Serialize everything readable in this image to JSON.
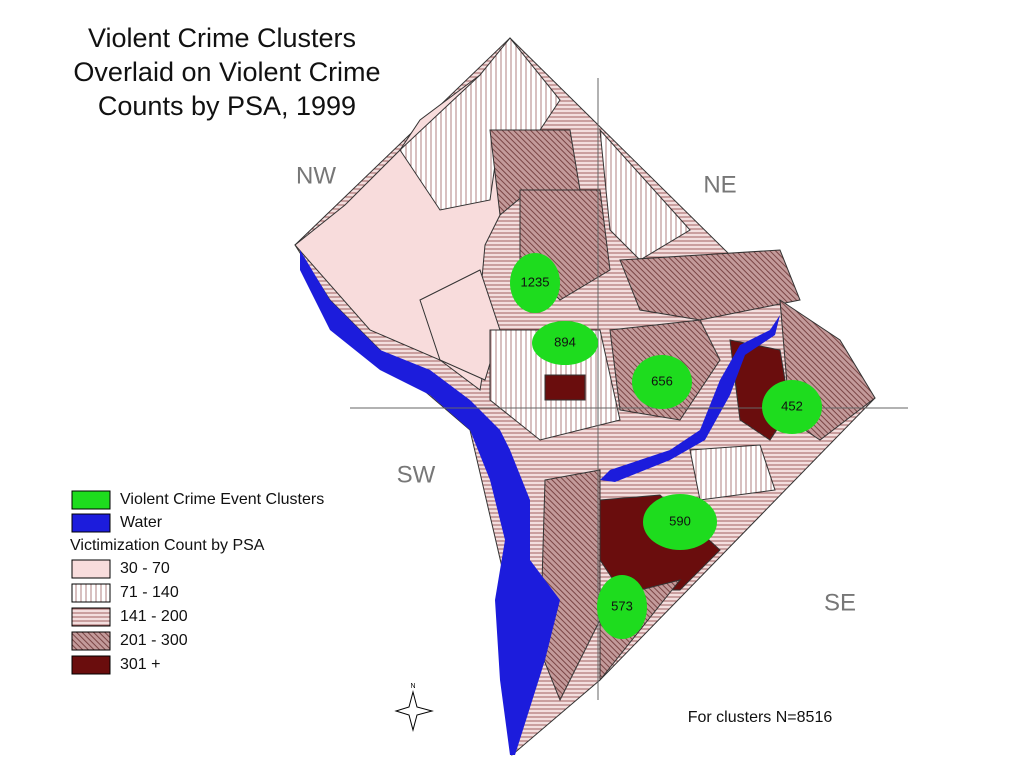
{
  "title": [
    "Violent Crime Clusters",
    "Overlaid on Violent Crime",
    "Counts by PSA, 1999"
  ],
  "quadrants": [
    "NW",
    "NE",
    "SW",
    "SE"
  ],
  "clusters": [
    1235,
    894,
    656,
    452,
    590,
    573
  ],
  "legend": {
    "items": [
      "Violent Crime Event Clusters",
      "Water"
    ],
    "heading": "Victimization Count by PSA",
    "classes": [
      "30 - 70",
      "71 - 140",
      "141 - 200",
      "201 - 300",
      "301 +"
    ]
  },
  "north": "N",
  "note": "For clusters N=8516"
}
